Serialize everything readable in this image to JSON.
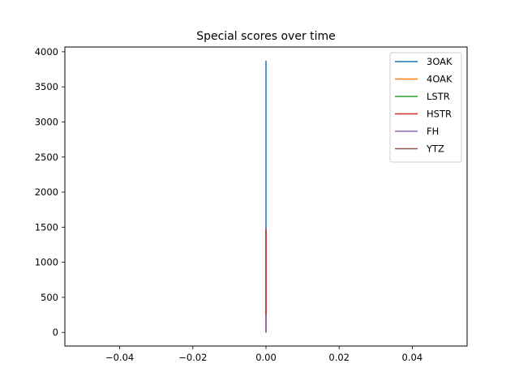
{
  "chart_data": {
    "type": "line",
    "title": "Special scores over time",
    "xlabel": "",
    "ylabel": "",
    "xlim": [
      -0.055,
      0.055
    ],
    "ylim": [
      -194,
      4068
    ],
    "xticks": [
      -0.04,
      -0.02,
      0.0,
      0.02,
      0.04
    ],
    "xtick_labels": [
      "−0.04",
      "−0.02",
      "0.00",
      "0.02",
      "0.04"
    ],
    "yticks": [
      0,
      500,
      1000,
      1500,
      2000,
      2500,
      3000,
      3500,
      4000
    ],
    "ytick_labels": [
      "0",
      "500",
      "1000",
      "1500",
      "2000",
      "2500",
      "3000",
      "3500",
      "4000"
    ],
    "grid": false,
    "legend_position": "top-right",
    "series": [
      {
        "name": "3OAK",
        "color": "#1f77b4",
        "x": [
          0,
          0
        ],
        "y": [
          0,
          3873
        ]
      },
      {
        "name": "4OAK",
        "color": "#ff7f0e",
        "x": [
          0,
          0
        ],
        "y": [
          0,
          250
        ]
      },
      {
        "name": "LSTR",
        "color": "#2ca02c",
        "x": [
          0,
          0
        ],
        "y": [
          0,
          1450
        ]
      },
      {
        "name": "HSTR",
        "color": "#d62728",
        "x": [
          0,
          0
        ],
        "y": [
          0,
          1480
        ]
      },
      {
        "name": "FH",
        "color": "#9467bd",
        "x": [
          0,
          0
        ],
        "y": [
          0,
          270
        ]
      },
      {
        "name": "YTZ",
        "color": "#8c564b",
        "x": [
          0,
          0
        ],
        "y": [
          0,
          0
        ]
      }
    ]
  }
}
